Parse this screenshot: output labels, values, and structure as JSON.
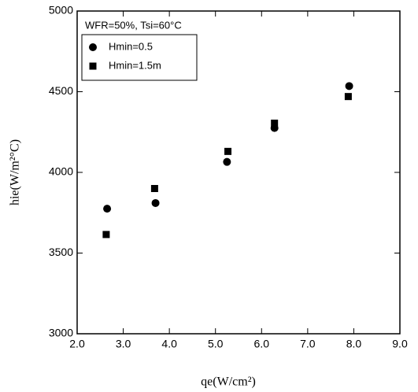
{
  "chart_data": {
    "type": "scatter",
    "annotation": "WFR=50%, Tsi=60°C",
    "x_label": "qe(W/cm²)",
    "y_label": "hie(W/m²°C)",
    "xlim": [
      2,
      9
    ],
    "xticks": [
      {
        "value": 2,
        "label": "2.0"
      },
      {
        "value": 3,
        "label": "3.0"
      },
      {
        "value": 4,
        "label": "4.0"
      },
      {
        "value": 5,
        "label": "5.0"
      },
      {
        "value": 6,
        "label": "6.0"
      },
      {
        "value": 7,
        "label": "7.0"
      },
      {
        "value": 8,
        "label": "8.0"
      },
      {
        "value": 9,
        "label": "9.0"
      }
    ],
    "ylim": [
      3000,
      5000
    ],
    "yticks": [
      3000,
      3500,
      4000,
      4500,
      5000
    ],
    "legend": "top-left",
    "series": [
      {
        "name": "Hmin=0.5",
        "marker": "circle",
        "color": "#000000",
        "x": [
          2.65,
          3.7,
          5.25,
          6.28,
          7.9
        ],
        "values": [
          3775,
          3810,
          4065,
          4275,
          4535
        ]
      },
      {
        "name": "Hmin=1.5m",
        "marker": "square",
        "color": "#000000",
        "x": [
          2.63,
          3.68,
          5.27,
          6.28,
          7.88
        ],
        "values": [
          3615,
          3900,
          4130,
          4305,
          4470
        ]
      }
    ]
  }
}
